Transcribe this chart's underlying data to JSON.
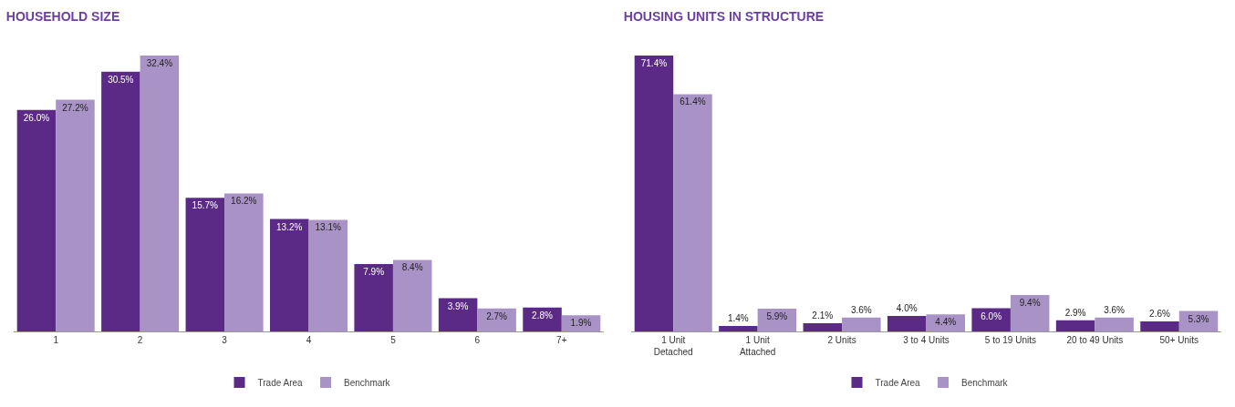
{
  "chart_data": [
    {
      "type": "bar",
      "title": "HOUSEHOLD SIZE",
      "categories": [
        "1",
        "2",
        "3",
        "4",
        "5",
        "6",
        "7+"
      ],
      "series": [
        {
          "name": "Trade Area",
          "color": "#5b2a86",
          "values": [
            26.0,
            30.5,
            15.7,
            13.2,
            7.9,
            3.9,
            2.8
          ],
          "value_labels": [
            "26.0%",
            "30.5%",
            "15.7%",
            "13.2%",
            "7.9%",
            "3.9%",
            "2.8%"
          ]
        },
        {
          "name": "Benchmark",
          "color": "#a992c6",
          "values": [
            27.2,
            32.4,
            16.2,
            13.1,
            8.4,
            2.7,
            1.9
          ],
          "value_labels": [
            "27.2%",
            "32.4%",
            "16.2%",
            "13.1%",
            "8.4%",
            "2.7%",
            "1.9%"
          ]
        }
      ],
      "legend": "bottom"
    },
    {
      "type": "bar",
      "title": "HOUSING UNITS IN STRUCTURE",
      "categories": [
        "1 Unit Detached",
        "1 Unit Attached",
        "2 Units",
        "3 to 4 Units",
        "5 to 19 Units",
        "20 to 49 Units",
        "50+ Units"
      ],
      "series": [
        {
          "name": "Trade Area",
          "color": "#5b2a86",
          "values": [
            71.4,
            1.4,
            2.1,
            4.0,
            6.0,
            2.9,
            2.6
          ],
          "value_labels": [
            "71.4%",
            "1.4%",
            "2.1%",
            "4.0%",
            "6.0%",
            "2.9%",
            "2.6%"
          ]
        },
        {
          "name": "Benchmark",
          "color": "#a992c6",
          "values": [
            61.4,
            5.9,
            3.6,
            4.4,
            9.4,
            3.6,
            5.3
          ],
          "value_labels": [
            "61.4%",
            "5.9%",
            "3.6%",
            "4.4%",
            "9.4%",
            "3.6%",
            "5.3%"
          ]
        }
      ],
      "legend": "bottom"
    }
  ]
}
